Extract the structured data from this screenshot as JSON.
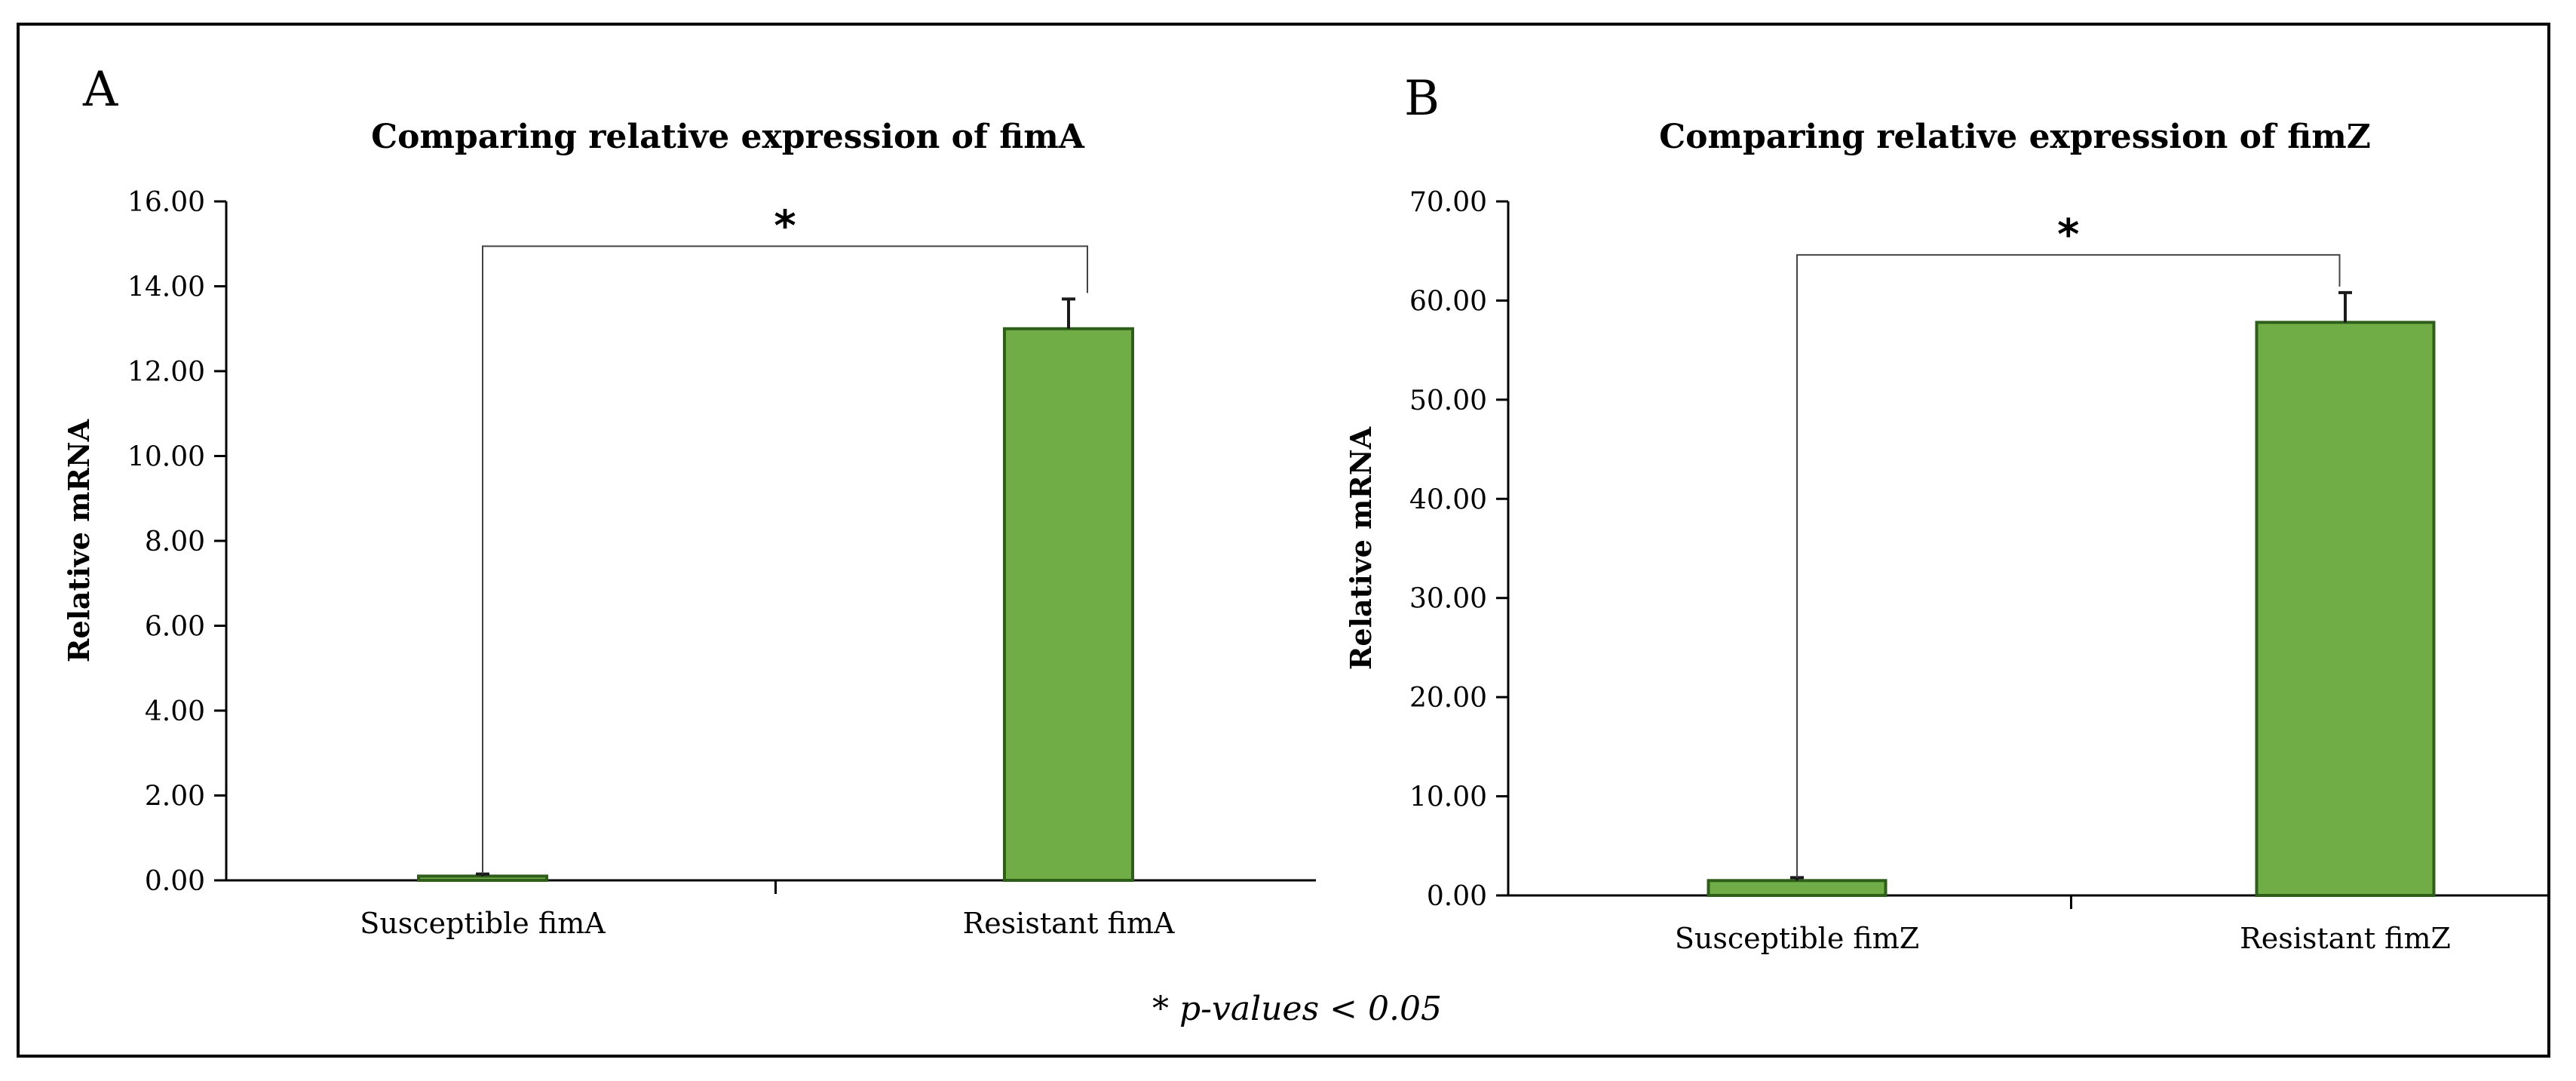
{
  "chart_data": [
    {
      "panel": "A",
      "type": "bar",
      "title": "Comparing relative expression of fimA",
      "ylabel": "Relative mRNA",
      "xlabel": "",
      "categories": [
        "Susceptible fimA",
        "Resistant fimA"
      ],
      "values": [
        0.1,
        13.0
      ],
      "error": [
        0.05,
        0.7
      ],
      "ylim": [
        0,
        16
      ],
      "yticks": [
        "0.00",
        "2.00",
        "4.00",
        "6.00",
        "8.00",
        "10.00",
        "12.00",
        "14.00",
        "16.00"
      ],
      "significance": "*",
      "bar_color": "#70ad47",
      "bar_edge": "#2e5e1a"
    },
    {
      "panel": "B",
      "type": "bar",
      "title": "Comparing relative expression of fimZ",
      "ylabel": "Relative mRNA",
      "xlabel": "",
      "categories": [
        "Susceptible fimZ",
        "Resistant fimZ"
      ],
      "values": [
        1.5,
        57.8
      ],
      "error": [
        0.3,
        3.0
      ],
      "ylim": [
        0,
        70
      ],
      "yticks": [
        "0.00",
        "10.00",
        "20.00",
        "30.00",
        "40.00",
        "50.00",
        "60.00",
        "70.00"
      ],
      "significance": "*",
      "bar_color": "#70ad47",
      "bar_edge": "#2e5e1a"
    }
  ],
  "footnote": "* p-values < 0.05"
}
